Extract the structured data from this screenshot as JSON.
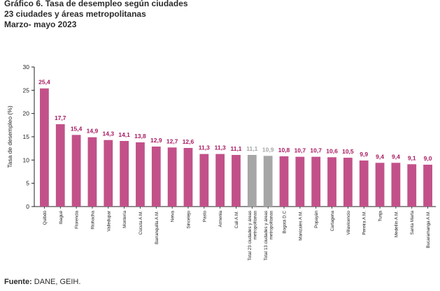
{
  "header": {
    "title_line1": "Gráfico 6. Tasa de desempleo según ciudades",
    "title_line2": "23 ciudades y áreas metropolitanas",
    "title_line3": "Marzo- mayo 2023"
  },
  "footer": {
    "source_label": "Fuente:",
    "source_text": "DANE, GEIH."
  },
  "colors": {
    "bar_city": "#c2518a",
    "bar_total": "#a6a6a6",
    "label_city": "#a8185f",
    "label_total": "#a6a6a6",
    "axis": "#222222"
  },
  "chart_data": {
    "type": "bar",
    "title": "Tasa de desempleo según ciudades",
    "xlabel": "",
    "ylabel": "Tasa de desempleo (%)",
    "ylim": [
      0,
      30
    ],
    "yticks": [
      0,
      5,
      10,
      15,
      20,
      25,
      30
    ],
    "grid": false,
    "categories": [
      "Quibdó",
      "Ibagué",
      "Florencia",
      "Riohacha",
      "Valledupar",
      "Montería",
      "Cúcuta A.M.",
      "Barranquilla A.M.",
      "Neiva",
      "Sincelejo",
      "Pasto",
      "Armenia",
      "Cali A.M.",
      "Total 23 ciudades y áreas metropolitanas",
      "Total 13 ciudades y áreas metropolitanas",
      "Bogotá D.C",
      "Manizales A.M.",
      "Popayán",
      "Cartagena",
      "Villavicencio",
      "Pereira A.M.",
      "Tunja",
      "Medellín A.M.",
      "Santa Marta",
      "Bucaramanga A.M."
    ],
    "category_lines": [
      [
        "Quibdó"
      ],
      [
        "Ibagué"
      ],
      [
        "Florencia"
      ],
      [
        "Riohacha"
      ],
      [
        "Valledupar"
      ],
      [
        "Montería"
      ],
      [
        "Cúcuta A.M."
      ],
      [
        "Barranquilla A.M."
      ],
      [
        "Neiva"
      ],
      [
        "Sincelejo"
      ],
      [
        "Pasto"
      ],
      [
        "Armenia"
      ],
      [
        "Cali A.M."
      ],
      [
        "Total 23 ciudades y áreas",
        "metropolitanas"
      ],
      [
        "Total 13 ciudades y áreas",
        "metropolitanas"
      ],
      [
        "Bogotá D.C"
      ],
      [
        "Manizales A.M."
      ],
      [
        "Popayán"
      ],
      [
        "Cartagena"
      ],
      [
        "Villavicencio"
      ],
      [
        "Pereira A.M."
      ],
      [
        "Tunja"
      ],
      [
        "Medellín A.M."
      ],
      [
        "Santa Marta"
      ],
      [
        "Bucaramanga A.M."
      ]
    ],
    "values": [
      25.4,
      17.7,
      15.4,
      14.9,
      14.3,
      14.1,
      13.8,
      12.9,
      12.7,
      12.6,
      11.3,
      11.3,
      11.1,
      11.1,
      10.9,
      10.8,
      10.7,
      10.7,
      10.6,
      10.5,
      9.9,
      9.4,
      9.4,
      9.1,
      9.0
    ],
    "value_labels": [
      "25,4",
      "17,7",
      "15,4",
      "14,9",
      "14,3",
      "14,1",
      "13,8",
      "12,9",
      "12,7",
      "12,6",
      "11,3",
      "11,3",
      "11,1",
      "11,1",
      "10,9",
      "10,8",
      "10,7",
      "10,7",
      "10,6",
      "10,5",
      "9,9",
      "9,4",
      "9,4",
      "9,1",
      "9,0"
    ],
    "highlight": [
      false,
      false,
      false,
      false,
      false,
      false,
      false,
      false,
      false,
      false,
      false,
      false,
      false,
      true,
      true,
      false,
      false,
      false,
      false,
      false,
      false,
      false,
      false,
      false,
      false
    ]
  }
}
